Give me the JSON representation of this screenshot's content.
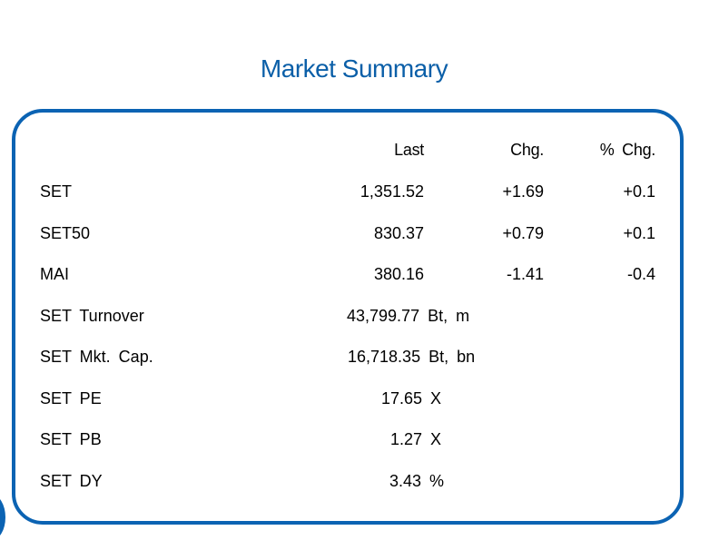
{
  "title": "Market Summary",
  "columns": {
    "last": "Last",
    "chg": "Chg.",
    "pct": "% Chg."
  },
  "rows": [
    {
      "label": "SET",
      "last": "1,351.52",
      "chg": "+1.69",
      "pct": "+0.1"
    },
    {
      "label": "SET50",
      "last": "830.37",
      "chg": "+0.79",
      "pct": "+0.1"
    },
    {
      "label": "MAI",
      "last": "380.16",
      "chg": "-1.41",
      "pct": "-0.4"
    },
    {
      "label": "SET Turnover",
      "value": "43,799.77 Bt, m"
    },
    {
      "label": "SET Mkt. Cap.",
      "value": "16,718.35 Bt, bn"
    },
    {
      "label": "SET PE",
      "value": "17.65 X"
    },
    {
      "label": "SET PB",
      "value": "1.27 X"
    },
    {
      "label": "SET DY",
      "value": "3.43 %"
    }
  ],
  "colors": {
    "accent": "#0b63b3",
    "title": "#0b5fa8"
  }
}
